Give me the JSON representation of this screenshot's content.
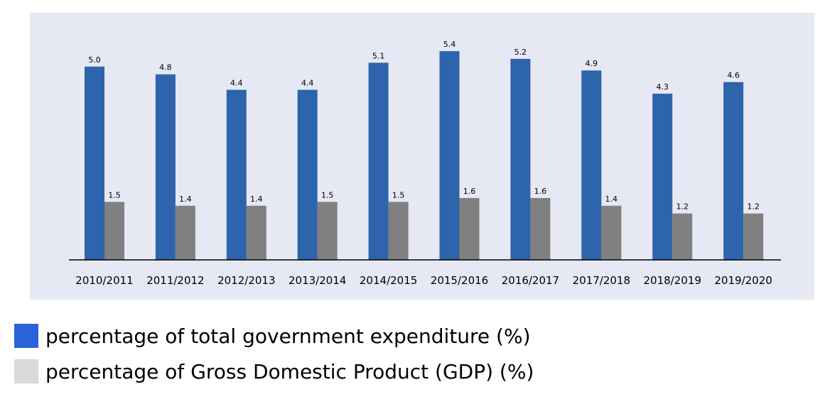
{
  "chart_data": {
    "type": "bar",
    "categories": [
      "2010/2011",
      "2011/2012",
      "2012/2013",
      "2013/2014",
      "2014/2015",
      "2015/2016",
      "2016/2017",
      "2017/2018",
      "2018/2019",
      "2019/2020"
    ],
    "series": [
      {
        "name": "percentage of total government expenditure (%)",
        "values": [
          5.0,
          4.8,
          4.4,
          4.4,
          5.1,
          5.4,
          5.2,
          4.9,
          4.3,
          4.6
        ],
        "color": "#2e64ab"
      },
      {
        "name": "percentage of Gross Domestic Product (GDP) (%)",
        "values": [
          1.5,
          1.4,
          1.4,
          1.5,
          1.5,
          1.6,
          1.6,
          1.4,
          1.2,
          1.2
        ],
        "color": "#808080"
      }
    ],
    "data_labels": [
      [
        "5.0",
        "4.8",
        "4.4",
        "4.4",
        "5.1",
        "5.4",
        "5.2",
        "4.9",
        "4.3",
        "4.6"
      ],
      [
        "1.5",
        "1.4",
        "1.4",
        "1.5",
        "1.5",
        "1.6",
        "1.6",
        "1.4",
        "1.2",
        "1.2"
      ]
    ],
    "title": "",
    "xlabel": "",
    "ylabel": "",
    "ylim": [
      0,
      5.4
    ],
    "grid": false,
    "legend_position": "bottom-left"
  },
  "legend": {
    "items": [
      {
        "label": "percentage of total government expenditure (%)",
        "color": "#2a63d8"
      },
      {
        "label": "percentage of Gross Domestic Product (GDP) (%)",
        "color": "#d9d9d9"
      }
    ]
  },
  "colors": {
    "panel_background": "#e6e8f3",
    "axis": "#000000"
  }
}
